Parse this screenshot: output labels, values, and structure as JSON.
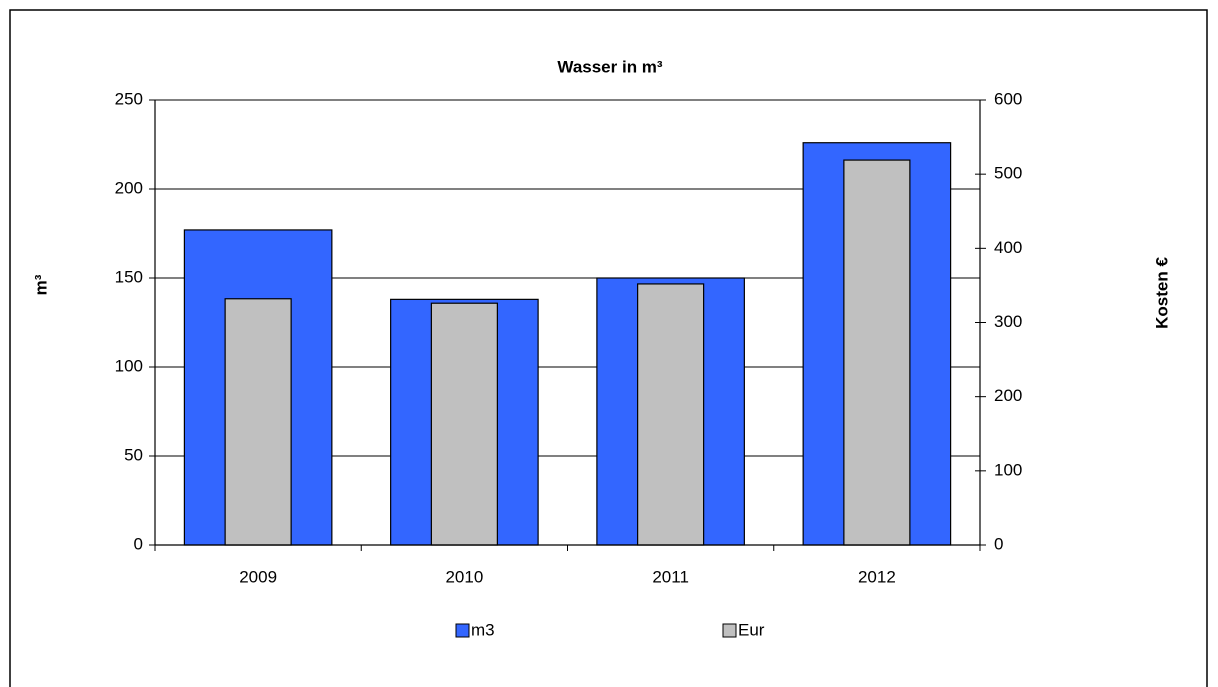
{
  "chart_data": {
    "type": "bar",
    "title": "Wasser in m³",
    "categories": [
      "2009",
      "2010",
      "2011",
      "2012"
    ],
    "series": [
      {
        "name": "m3",
        "color": "#3366ff",
        "values": [
          177,
          138,
          150,
          226
        ]
      },
      {
        "name": "Eur",
        "color": "#c0c0c0",
        "values": [
          332,
          326,
          352,
          519
        ],
        "axis": "y2"
      }
    ],
    "ylabel": "m³",
    "y2label": "Kosten €",
    "ylim": [
      0,
      250
    ],
    "yticks": [
      0,
      50,
      100,
      150,
      200,
      250
    ],
    "y2lim": [
      0,
      600
    ],
    "y2ticks": [
      0,
      100,
      200,
      300,
      400,
      500,
      600
    ],
    "grid": true,
    "legend": "bottom"
  }
}
